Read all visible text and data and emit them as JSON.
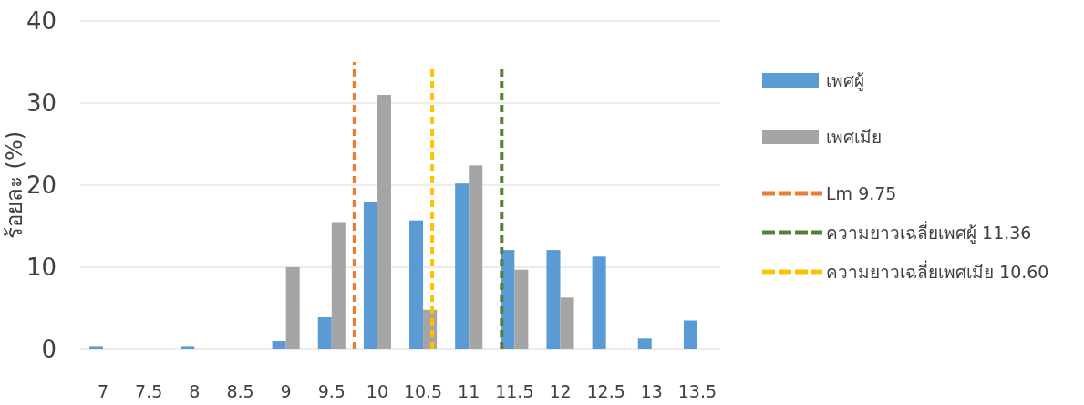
{
  "chart_data": {
    "type": "bar",
    "ylabel": "ร้อยละ (%)",
    "x": [
      7,
      7.5,
      8,
      8.5,
      9,
      9.5,
      10,
      10.5,
      11,
      11.5,
      12,
      12.5,
      13,
      13.5
    ],
    "series": [
      {
        "name": "เพศผู้",
        "color": "#5b9bd5",
        "values": [
          0.4,
          0,
          0.4,
          0,
          1,
          4,
          18,
          15.7,
          20.2,
          12.1,
          12.1,
          11.3,
          1.3,
          3.5
        ]
      },
      {
        "name": "เพศเมีย",
        "color": "#a5a5a5",
        "values": [
          0,
          0,
          0,
          0,
          10,
          15.5,
          31,
          4.8,
          22.4,
          9.7,
          6.3,
          0,
          0,
          0
        ]
      },
      {
        "name": "Lm 9.75",
        "type": "line",
        "color": "#ed7d31",
        "line_style": "dashed",
        "x": [
          9.75,
          9.75
        ],
        "values": [
          0,
          35
        ]
      },
      {
        "name": "ความยาวเฉลี่ยเพศผู้ 11.36",
        "type": "line",
        "color": "#548235",
        "line_style": "dashed",
        "x": [
          11.36,
          11.36
        ],
        "values": [
          0,
          34.5
        ]
      },
      {
        "name": "ความยาวเฉลี่ยเพศเมีย 10.60",
        "type": "line",
        "color": "#ffc000",
        "line_style": "dashed",
        "x": [
          10.6,
          10.6
        ],
        "values": [
          0,
          34.5
        ]
      }
    ],
    "xlim": [
      6.75,
      13.75
    ],
    "xticks": [
      7,
      7.5,
      8,
      8.5,
      9,
      9.5,
      10,
      10.5,
      11,
      11.5,
      12,
      12.5,
      13,
      13.5
    ],
    "ylim": [
      0,
      40
    ],
    "yticks": [
      0,
      10,
      20,
      30,
      40
    ],
    "grid": "y",
    "legend": "right"
  }
}
